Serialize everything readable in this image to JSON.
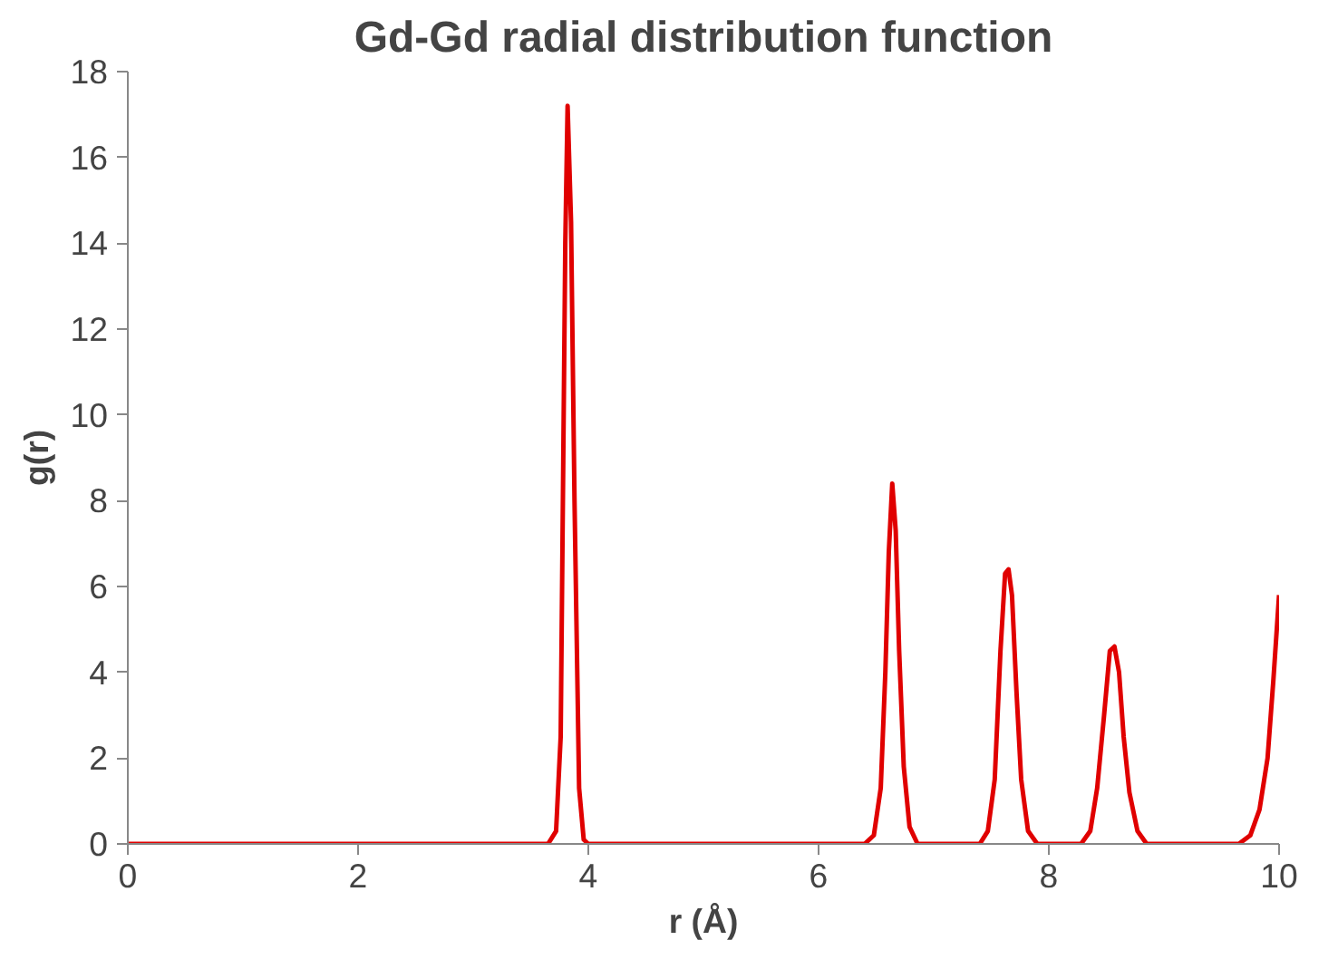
{
  "chart_data": {
    "type": "line",
    "title": "Gd-Gd radial distribution function",
    "xlabel": "r (Å)",
    "ylabel": "g(r)",
    "xlim": [
      0,
      10
    ],
    "ylim": [
      0,
      18
    ],
    "xticks": [
      0,
      2,
      4,
      6,
      8,
      10
    ],
    "yticks": [
      0,
      2,
      4,
      6,
      8,
      10,
      12,
      14,
      16,
      18
    ],
    "grid": false,
    "marker": "none",
    "line_style": "solid",
    "series": [
      {
        "color": "#e00000",
        "x": [
          0,
          3.65,
          3.72,
          3.76,
          3.8,
          3.82,
          3.85,
          3.88,
          3.92,
          3.96,
          4.0,
          6.4,
          6.48,
          6.54,
          6.58,
          6.61,
          6.64,
          6.67,
          6.7,
          6.74,
          6.79,
          6.86,
          7.4,
          7.47,
          7.53,
          7.58,
          7.62,
          7.65,
          7.68,
          7.72,
          7.76,
          7.82,
          7.9,
          8.28,
          8.36,
          8.42,
          8.48,
          8.53,
          8.57,
          8.61,
          8.65,
          8.7,
          8.77,
          8.85,
          9.65,
          9.75,
          9.83,
          9.9,
          9.95,
          10.0
        ],
        "values": [
          0,
          0,
          0.3,
          2.5,
          14,
          17.2,
          14.5,
          8,
          1.3,
          0.1,
          0,
          0,
          0.2,
          1.3,
          4,
          6.8,
          8.4,
          7.3,
          4.5,
          1.8,
          0.4,
          0,
          0,
          0.3,
          1.5,
          4.5,
          6.3,
          6.4,
          5.8,
          3.5,
          1.5,
          0.3,
          0,
          0,
          0.3,
          1.3,
          3,
          4.5,
          4.6,
          4,
          2.5,
          1.2,
          0.3,
          0,
          0,
          0.2,
          0.8,
          2,
          3.8,
          5.8
        ]
      }
    ]
  }
}
